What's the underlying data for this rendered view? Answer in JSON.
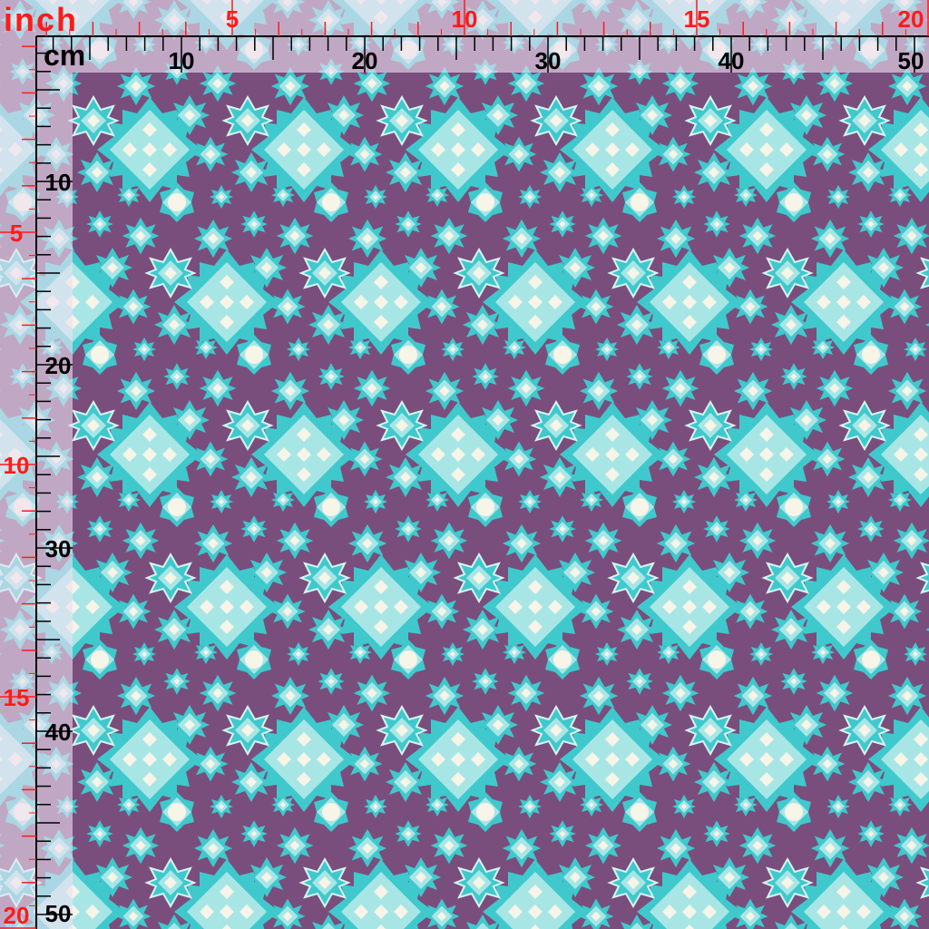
{
  "rulers": {
    "inch_unit": "inch",
    "cm_unit": "cm",
    "inch_labels_top": [
      "5",
      "10",
      "15",
      "20"
    ],
    "inch_labels_left": [
      "5",
      "10",
      "15",
      "20"
    ],
    "cm_labels_top": [
      "10",
      "20",
      "30",
      "40",
      "50"
    ],
    "cm_labels_left": [
      "10",
      "20",
      "30",
      "40",
      "50"
    ]
  },
  "colors": {
    "background": "#7a4e7c",
    "teal": "#3fc9cd",
    "light_teal": "#a8e6e6",
    "cream": "#f7f4e8",
    "inch_marks": "#ff1a1a",
    "cm_marks": "#000000"
  },
  "pattern": {
    "motifs": [
      "large-diamond-flower",
      "outlined-star",
      "medium-star",
      "small-star",
      "cream-center-star"
    ]
  }
}
